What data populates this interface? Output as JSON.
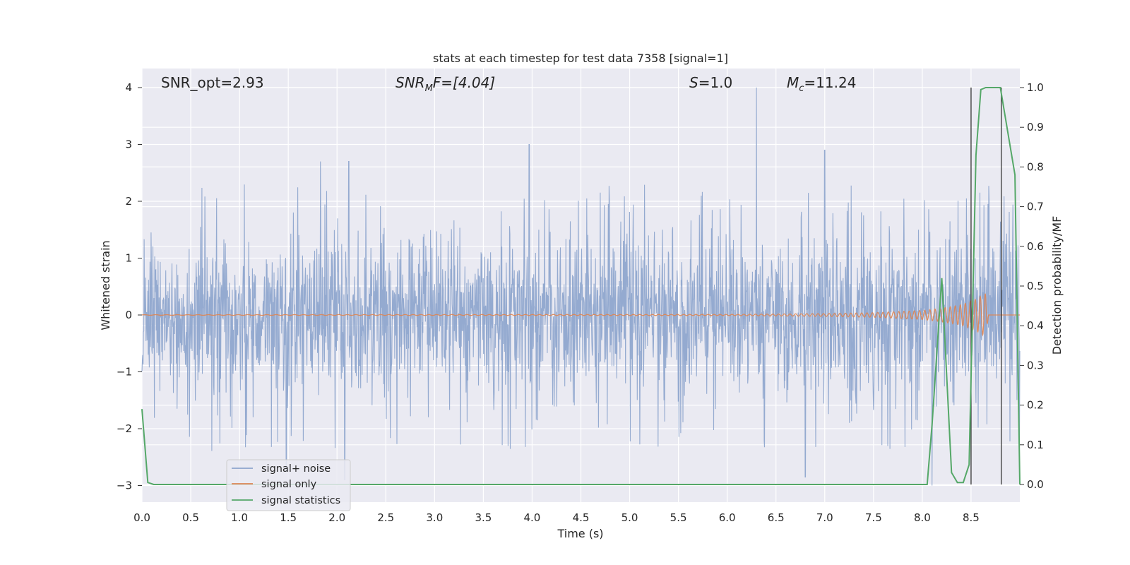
{
  "chart_data": {
    "type": "line",
    "title": "stats at each timestep for test data 7358 [signal=1]",
    "xlabel": "Time (s)",
    "ylabel": "Whitened strain",
    "ylabel_right": "Detection probability/MF",
    "xlim": [
      0.0,
      9.0
    ],
    "ylim": [
      -3.3,
      4.33
    ],
    "ylim_right": [
      -0.05,
      1.02
    ],
    "x_ticks": [
      "0.0",
      "0.5",
      "1.0",
      "1.5",
      "2.0",
      "2.5",
      "3.0",
      "3.5",
      "4.0",
      "4.5",
      "5.0",
      "5.5",
      "6.0",
      "6.5",
      "7.0",
      "7.5",
      "8.0",
      "8.5"
    ],
    "y_ticks": [
      "4",
      "3",
      "2",
      "1",
      "0",
      "−1",
      "−2",
      "−3"
    ],
    "y_ticks_right": [
      "1.0",
      "0.9",
      "0.8",
      "0.7",
      "0.6",
      "0.5",
      "0.4",
      "0.3",
      "0.2",
      "0.1",
      "0.0"
    ],
    "grid": true,
    "legend_position": "bottom-left",
    "annotations": {
      "snr_opt": "SNR_opt=2.93",
      "snr_mf_main": "SNR",
      "snr_mf_sub": "M",
      "snr_mf_rest": "F=[4.04]",
      "s_var": "S",
      "s_val": "=1.0",
      "mc_var": "M",
      "mc_sub": "c",
      "mc_val": "=11.24"
    },
    "series": [
      {
        "name": "signal+ noise",
        "color": "#8fa6cd",
        "style": "dense noise, typical range -1.6 to 2.0, peaks to 4.0 at t=6.3, lows near -2.9 at t=6.8 and t=8.1",
        "extremes": [
          [
            1.83,
            2.7
          ],
          [
            2.12,
            2.7
          ],
          [
            3.97,
            3.0
          ],
          [
            6.3,
            4.0
          ],
          [
            7.0,
            2.9
          ],
          [
            6.8,
            -2.85
          ],
          [
            1.48,
            -2.75
          ],
          [
            2.08,
            -2.9
          ],
          [
            8.1,
            -3.0
          ]
        ]
      },
      {
        "name": "signal only",
        "color": "#dd8452",
        "envelope_t": [
          0.0,
          6.0,
          7.0,
          7.5,
          8.0,
          8.2,
          8.4,
          8.55,
          8.62,
          8.65,
          8.68
        ],
        "envelope_amp": [
          0.005,
          0.01,
          0.025,
          0.04,
          0.08,
          0.12,
          0.18,
          0.28,
          0.35,
          0.38,
          0.0
        ]
      },
      {
        "name": "signal statistics",
        "color": "#55a868",
        "axis": "right",
        "t": [
          0.0,
          0.06,
          0.12,
          8.0,
          8.05,
          8.1,
          8.2,
          8.3,
          8.36,
          8.42,
          8.48,
          8.55,
          8.6,
          8.65,
          8.8,
          8.95,
          9.0
        ],
        "values": [
          0.19,
          0.005,
          0.0,
          0.0,
          0.0,
          0.15,
          0.52,
          0.03,
          0.005,
          0.005,
          0.05,
          0.83,
          0.995,
          1.0,
          1.0,
          0.78,
          0.0
        ]
      }
    ],
    "vertical_lines": [
      8.5,
      8.81
    ],
    "legend": [
      "signal+ noise",
      "signal only",
      "signal statistics"
    ]
  }
}
